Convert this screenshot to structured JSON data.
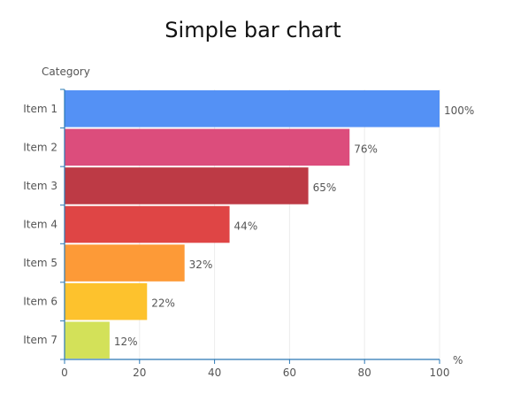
{
  "chart_data": {
    "type": "bar",
    "orientation": "horizontal",
    "title": "Simple bar chart",
    "ylabel": "Category",
    "xlabel": "%",
    "categories": [
      "Item 1",
      "Item 2",
      "Item 3",
      "Item 4",
      "Item 5",
      "Item 6",
      "Item 7"
    ],
    "values": [
      100,
      76,
      65,
      44,
      32,
      22,
      12
    ],
    "data_labels": [
      "100%",
      "76%",
      "65%",
      "44%",
      "32%",
      "22%",
      "12%"
    ],
    "colors": [
      "#5491f5",
      "#dc4d7c",
      "#bd3a45",
      "#df4545",
      "#fd9a37",
      "#fdc22d",
      "#d3e159"
    ],
    "xlim": [
      0,
      100
    ],
    "x_ticks": [
      "0",
      "20",
      "40",
      "60",
      "80",
      "100"
    ],
    "grid": "vertical",
    "axis_color": "#2a78b5",
    "grid_color": "#ececec"
  }
}
